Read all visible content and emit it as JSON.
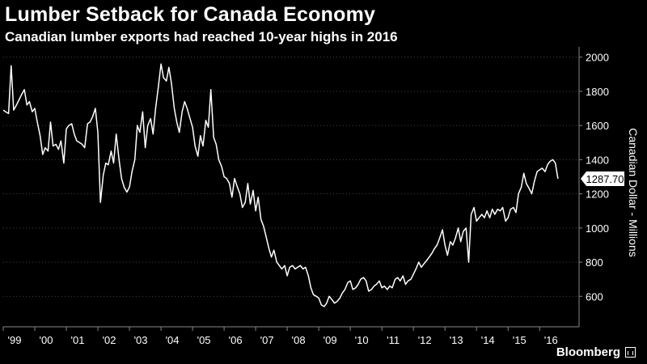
{
  "header": {
    "title": "Lumber Setback for Canada Economy",
    "subtitle": "Canadian lumber exports had reached 10-year highs in 2016"
  },
  "footer": {
    "brand": "Bloomberg"
  },
  "colors": {
    "background": "#000000",
    "line": "#ffffff",
    "grid": "#3a3a3a",
    "text": "#ffffff"
  },
  "chart_data": {
    "type": "line",
    "title": "Lumber Setback for Canada Economy",
    "subtitle": "Canadian lumber exports had reached 10-year highs in 2016",
    "ylabel": "Canadian Dollar - Millions",
    "ylim": [
      450,
      2060
    ],
    "yticks": [
      600,
      800,
      1000,
      1200,
      1400,
      1600,
      1800,
      2000
    ],
    "xlim": [
      1999.0,
      2017.25
    ],
    "xtick_labels": [
      "'99",
      "'00",
      "'01",
      "'02",
      "'03",
      "'04",
      "'05",
      "'06",
      "'07",
      "'08",
      "'09",
      "'10",
      "'11",
      "'12",
      "'13",
      "'14",
      "'15",
      "'16"
    ],
    "xtick_years": [
      1999,
      2000,
      2001,
      2002,
      2003,
      2004,
      2005,
      2006,
      2007,
      2008,
      2009,
      2010,
      2011,
      2012,
      2013,
      2014,
      2015,
      2016
    ],
    "grid": "horizontal dotted",
    "last_value_label": "1287.70",
    "series": [
      {
        "points": [
          [
            1999.0,
            1690
          ],
          [
            1999.08,
            1680
          ],
          [
            1999.17,
            1670
          ],
          [
            1999.25,
            1950
          ],
          [
            1999.33,
            1690
          ],
          [
            1999.42,
            1720
          ],
          [
            1999.5,
            1750
          ],
          [
            1999.58,
            1780
          ],
          [
            1999.67,
            1810
          ],
          [
            1999.75,
            1720
          ],
          [
            1999.83,
            1740
          ],
          [
            1999.92,
            1680
          ],
          [
            2000.0,
            1700
          ],
          [
            2000.08,
            1620
          ],
          [
            2000.17,
            1540
          ],
          [
            2000.25,
            1430
          ],
          [
            2000.33,
            1470
          ],
          [
            2000.42,
            1450
          ],
          [
            2000.5,
            1620
          ],
          [
            2000.58,
            1480
          ],
          [
            2000.67,
            1490
          ],
          [
            2000.75,
            1460
          ],
          [
            2000.83,
            1510
          ],
          [
            2000.92,
            1380
          ],
          [
            2001.0,
            1580
          ],
          [
            2001.08,
            1600
          ],
          [
            2001.17,
            1610
          ],
          [
            2001.25,
            1550
          ],
          [
            2001.33,
            1510
          ],
          [
            2001.42,
            1500
          ],
          [
            2001.5,
            1490
          ],
          [
            2001.58,
            1470
          ],
          [
            2001.67,
            1610
          ],
          [
            2001.75,
            1620
          ],
          [
            2001.83,
            1650
          ],
          [
            2001.92,
            1700
          ],
          [
            2002.0,
            1560
          ],
          [
            2002.08,
            1150
          ],
          [
            2002.17,
            1310
          ],
          [
            2002.25,
            1380
          ],
          [
            2002.33,
            1370
          ],
          [
            2002.42,
            1450
          ],
          [
            2002.5,
            1380
          ],
          [
            2002.58,
            1550
          ],
          [
            2002.67,
            1400
          ],
          [
            2002.75,
            1290
          ],
          [
            2002.83,
            1240
          ],
          [
            2002.92,
            1210
          ],
          [
            2003.0,
            1240
          ],
          [
            2003.08,
            1330
          ],
          [
            2003.17,
            1400
          ],
          [
            2003.25,
            1600
          ],
          [
            2003.33,
            1560
          ],
          [
            2003.42,
            1680
          ],
          [
            2003.5,
            1470
          ],
          [
            2003.58,
            1600
          ],
          [
            2003.67,
            1640
          ],
          [
            2003.75,
            1550
          ],
          [
            2003.83,
            1700
          ],
          [
            2003.92,
            1830
          ],
          [
            2004.0,
            1960
          ],
          [
            2004.08,
            1880
          ],
          [
            2004.17,
            1860
          ],
          [
            2004.25,
            1940
          ],
          [
            2004.33,
            1850
          ],
          [
            2004.42,
            1700
          ],
          [
            2004.5,
            1620
          ],
          [
            2004.58,
            1560
          ],
          [
            2004.67,
            1680
          ],
          [
            2004.75,
            1740
          ],
          [
            2004.83,
            1700
          ],
          [
            2004.92,
            1640
          ],
          [
            2005.0,
            1590
          ],
          [
            2005.08,
            1480
          ],
          [
            2005.17,
            1420
          ],
          [
            2005.25,
            1540
          ],
          [
            2005.33,
            1480
          ],
          [
            2005.42,
            1630
          ],
          [
            2005.5,
            1590
          ],
          [
            2005.58,
            1810
          ],
          [
            2005.67,
            1530
          ],
          [
            2005.75,
            1490
          ],
          [
            2005.83,
            1400
          ],
          [
            2005.92,
            1360
          ],
          [
            2006.0,
            1300
          ],
          [
            2006.08,
            1290
          ],
          [
            2006.17,
            1260
          ],
          [
            2006.25,
            1180
          ],
          [
            2006.33,
            1290
          ],
          [
            2006.42,
            1240
          ],
          [
            2006.5,
            1200
          ],
          [
            2006.58,
            1120
          ],
          [
            2006.67,
            1150
          ],
          [
            2006.75,
            1260
          ],
          [
            2006.83,
            1140
          ],
          [
            2006.92,
            1220
          ],
          [
            2007.0,
            1100
          ],
          [
            2007.08,
            1180
          ],
          [
            2007.17,
            1050
          ],
          [
            2007.25,
            1010
          ],
          [
            2007.33,
            950
          ],
          [
            2007.42,
            880
          ],
          [
            2007.5,
            830
          ],
          [
            2007.58,
            870
          ],
          [
            2007.67,
            800
          ],
          [
            2007.75,
            780
          ],
          [
            2007.83,
            760
          ],
          [
            2007.92,
            780
          ],
          [
            2008.0,
            720
          ],
          [
            2008.08,
            770
          ],
          [
            2008.17,
            780
          ],
          [
            2008.25,
            760
          ],
          [
            2008.33,
            770
          ],
          [
            2008.42,
            780
          ],
          [
            2008.5,
            760
          ],
          [
            2008.58,
            770
          ],
          [
            2008.67,
            720
          ],
          [
            2008.75,
            650
          ],
          [
            2008.83,
            610
          ],
          [
            2008.92,
            600
          ],
          [
            2009.0,
            590
          ],
          [
            2009.08,
            550
          ],
          [
            2009.17,
            540
          ],
          [
            2009.25,
            560
          ],
          [
            2009.33,
            600
          ],
          [
            2009.42,
            580
          ],
          [
            2009.5,
            560
          ],
          [
            2009.58,
            570
          ],
          [
            2009.67,
            590
          ],
          [
            2009.75,
            620
          ],
          [
            2009.83,
            640
          ],
          [
            2009.92,
            680
          ],
          [
            2010.0,
            690
          ],
          [
            2010.08,
            640
          ],
          [
            2010.17,
            650
          ],
          [
            2010.25,
            670
          ],
          [
            2010.33,
            700
          ],
          [
            2010.42,
            710
          ],
          [
            2010.5,
            690
          ],
          [
            2010.58,
            630
          ],
          [
            2010.67,
            640
          ],
          [
            2010.75,
            660
          ],
          [
            2010.83,
            670
          ],
          [
            2010.92,
            690
          ],
          [
            2011.0,
            650
          ],
          [
            2011.08,
            660
          ],
          [
            2011.17,
            640
          ],
          [
            2011.25,
            660
          ],
          [
            2011.33,
            650
          ],
          [
            2011.42,
            700
          ],
          [
            2011.5,
            710
          ],
          [
            2011.58,
            690
          ],
          [
            2011.67,
            720
          ],
          [
            2011.75,
            670
          ],
          [
            2011.83,
            690
          ],
          [
            2011.92,
            700
          ],
          [
            2012.0,
            730
          ],
          [
            2012.08,
            760
          ],
          [
            2012.17,
            800
          ],
          [
            2012.25,
            770
          ],
          [
            2012.33,
            790
          ],
          [
            2012.42,
            810
          ],
          [
            2012.5,
            830
          ],
          [
            2012.58,
            850
          ],
          [
            2012.67,
            880
          ],
          [
            2012.75,
            900
          ],
          [
            2012.83,
            940
          ],
          [
            2012.92,
            990
          ],
          [
            2013.0,
            900
          ],
          [
            2013.08,
            840
          ],
          [
            2013.17,
            920
          ],
          [
            2013.25,
            900
          ],
          [
            2013.33,
            940
          ],
          [
            2013.42,
            1000
          ],
          [
            2013.5,
            920
          ],
          [
            2013.58,
            980
          ],
          [
            2013.67,
            1000
          ],
          [
            2013.75,
            800
          ],
          [
            2013.83,
            1080
          ],
          [
            2013.92,
            1120
          ],
          [
            2014.0,
            1040
          ],
          [
            2014.08,
            1060
          ],
          [
            2014.17,
            1080
          ],
          [
            2014.25,
            1060
          ],
          [
            2014.33,
            1100
          ],
          [
            2014.42,
            1060
          ],
          [
            2014.5,
            1110
          ],
          [
            2014.58,
            1080
          ],
          [
            2014.67,
            1110
          ],
          [
            2014.75,
            1100
          ],
          [
            2014.83,
            1120
          ],
          [
            2014.92,
            1040
          ],
          [
            2015.0,
            1060
          ],
          [
            2015.08,
            1110
          ],
          [
            2015.17,
            1120
          ],
          [
            2015.25,
            1090
          ],
          [
            2015.33,
            1200
          ],
          [
            2015.42,
            1240
          ],
          [
            2015.5,
            1320
          ],
          [
            2015.58,
            1260
          ],
          [
            2015.67,
            1230
          ],
          [
            2015.75,
            1200
          ],
          [
            2015.83,
            1270
          ],
          [
            2015.92,
            1330
          ],
          [
            2016.0,
            1340
          ],
          [
            2016.08,
            1350
          ],
          [
            2016.17,
            1330
          ],
          [
            2016.25,
            1370
          ],
          [
            2016.33,
            1390
          ],
          [
            2016.42,
            1400
          ],
          [
            2016.5,
            1380
          ],
          [
            2016.58,
            1288
          ]
        ]
      }
    ]
  }
}
